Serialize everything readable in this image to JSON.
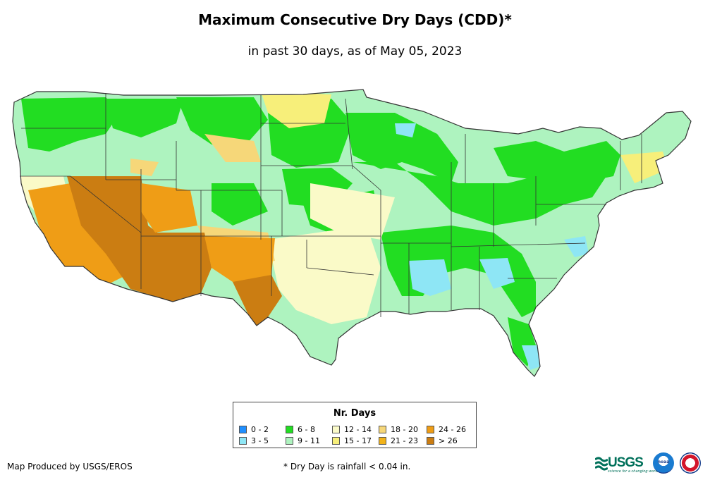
{
  "title": "Maximum Consecutive Dry Days (CDD)*",
  "subtitle": "in past 30 days, as of May 05, 2023",
  "legend": {
    "title": "Nr. Days",
    "items": [
      {
        "label": "0 - 2",
        "color": "#1f8fff"
      },
      {
        "label": "3 - 5",
        "color": "#8ee6f5"
      },
      {
        "label": "6 - 8",
        "color": "#22dd22"
      },
      {
        "label": "9 - 11",
        "color": "#aef3bf"
      },
      {
        "label": "12 - 14",
        "color": "#fafac8"
      },
      {
        "label": "15 - 17",
        "color": "#f7ef7a"
      },
      {
        "label": "18 - 20",
        "color": "#f6d779"
      },
      {
        "label": "21 - 23",
        "color": "#f2b31a"
      },
      {
        "label": "24 - 26",
        "color": "#ef9d16"
      },
      {
        "label": "> 26",
        "color": "#cb7d12"
      }
    ]
  },
  "map": {
    "region": "Contiguous United States",
    "colors": {
      "background": "#aef3bf",
      "green": "#22dd22",
      "light_green": "#aef3bf",
      "pale_yellow": "#fafac8",
      "yellow": "#f7ef7a",
      "tan": "#f6d779",
      "orange": "#ef9d16",
      "brown": "#cb7d12",
      "light_blue": "#8ee6f5",
      "border": "#333333"
    }
  },
  "credit": "Map Produced by USGS/EROS",
  "footnote": "* Dry Day is rainfall < 0.04 in.",
  "logos": {
    "usgs_text": "USGS",
    "usgs_tagline": "science for a changing world",
    "noaa_text": "noaa"
  }
}
